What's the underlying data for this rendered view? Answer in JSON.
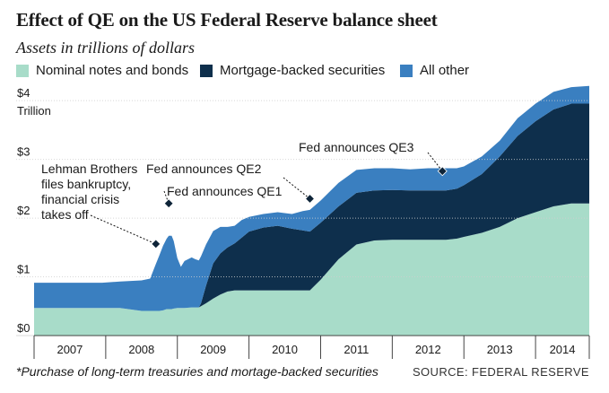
{
  "title": "Effect of QE on the US Federal Reserve balance sheet",
  "subtitle": "Assets in trillions of dollars",
  "footnote": "*Purchase of long-term treasuries and mortage-backed securities",
  "source": "SOURCE: FEDERAL RESERVE",
  "colors": {
    "notes": "#a8dcc9",
    "mbs": "#0e2f4c",
    "other": "#3a7fc0",
    "background": "#ffffff",
    "grid": "#cfcfcf"
  },
  "chart_data": {
    "type": "area",
    "stacked": true,
    "title": "Effect of QE on the US Federal Reserve balance sheet",
    "subtitle": "Assets in trillions of dollars",
    "y_unit_label": "Trillion",
    "ylim": [
      0,
      4.4
    ],
    "y_ticks": [
      {
        "value": 0,
        "label": "$0"
      },
      {
        "value": 1,
        "label": "$1"
      },
      {
        "value": 2,
        "label": "$2"
      },
      {
        "value": 3,
        "label": "$3"
      },
      {
        "value": 4,
        "label": "$4"
      }
    ],
    "xlim": [
      2007.0,
      2014.75
    ],
    "x_ticks": [
      {
        "value": 2007.0,
        "label": "2007"
      },
      {
        "value": 2008.0,
        "label": "2008"
      },
      {
        "value": 2009.0,
        "label": "2009"
      },
      {
        "value": 2010.0,
        "label": "2010"
      },
      {
        "value": 2011.0,
        "label": "2011"
      },
      {
        "value": 2012.0,
        "label": "2012"
      },
      {
        "value": 2013.0,
        "label": "2013"
      },
      {
        "value": 2014.0,
        "label": "2014"
      }
    ],
    "grid": "horizontal",
    "legend_position": "top",
    "x": [
      2007.0,
      2007.5,
      2007.95,
      2008.2,
      2008.5,
      2008.62,
      2008.7,
      2008.75,
      2008.8,
      2008.85,
      2008.88,
      2008.92,
      2008.95,
      2009.0,
      2009.05,
      2009.1,
      2009.2,
      2009.25,
      2009.3,
      2009.33,
      2009.4,
      2009.5,
      2009.6,
      2009.7,
      2009.8,
      2009.9,
      2010.0,
      2010.2,
      2010.4,
      2010.6,
      2010.75,
      2010.85,
      2011.0,
      2011.25,
      2011.5,
      2011.75,
      2012.0,
      2012.25,
      2012.5,
      2012.75,
      2012.9,
      2013.0,
      2013.25,
      2013.5,
      2013.75,
      2014.0,
      2014.25,
      2014.5,
      2014.75
    ],
    "series": [
      {
        "name": "Nominal notes and bonds",
        "color_key": "notes",
        "values": [
          0.47,
          0.47,
          0.47,
          0.47,
          0.42,
          0.42,
          0.42,
          0.42,
          0.43,
          0.45,
          0.45,
          0.45,
          0.46,
          0.47,
          0.47,
          0.47,
          0.48,
          0.48,
          0.48,
          0.5,
          0.55,
          0.63,
          0.7,
          0.75,
          0.77,
          0.77,
          0.77,
          0.77,
          0.77,
          0.77,
          0.77,
          0.77,
          0.95,
          1.3,
          1.55,
          1.62,
          1.63,
          1.63,
          1.63,
          1.63,
          1.65,
          1.68,
          1.75,
          1.85,
          2.0,
          2.1,
          2.2,
          2.25,
          2.25
        ]
      },
      {
        "name": "Mortgage-backed securities",
        "color_key": "mbs",
        "values": [
          0,
          0,
          0,
          0,
          0,
          0,
          0,
          0,
          0,
          0,
          0,
          0,
          0,
          0,
          0,
          0,
          0,
          0,
          0,
          0.05,
          0.3,
          0.6,
          0.7,
          0.75,
          0.8,
          0.9,
          1.0,
          1.07,
          1.1,
          1.05,
          1.02,
          1.0,
          0.97,
          0.9,
          0.88,
          0.85,
          0.85,
          0.84,
          0.84,
          0.84,
          0.85,
          0.88,
          1.0,
          1.2,
          1.4,
          1.55,
          1.65,
          1.7,
          1.7
        ]
      },
      {
        "name": "All other",
        "color_key": "other",
        "values": [
          0.43,
          0.43,
          0.43,
          0.45,
          0.52,
          0.55,
          0.8,
          0.95,
          1.1,
          1.2,
          1.25,
          1.25,
          1.15,
          0.85,
          0.7,
          0.8,
          0.85,
          0.82,
          0.8,
          0.8,
          0.7,
          0.55,
          0.45,
          0.35,
          0.3,
          0.3,
          0.25,
          0.23,
          0.23,
          0.25,
          0.33,
          0.37,
          0.38,
          0.4,
          0.39,
          0.38,
          0.37,
          0.36,
          0.38,
          0.38,
          0.35,
          0.32,
          0.3,
          0.27,
          0.3,
          0.3,
          0.3,
          0.28,
          0.3
        ]
      }
    ],
    "annotations": [
      {
        "label": "Lehman Brothers files bankruptcy, financial crisis takes off",
        "lines": [
          "Lehman Brothers",
          "files bankruptcy,",
          "financial crisis",
          "takes off"
        ],
        "x": 2008.7,
        "y": 1.56
      },
      {
        "label": "Fed announces QE1",
        "lines": [
          "Fed announces QE1"
        ],
        "x": 2008.88,
        "y": 2.25
      },
      {
        "label": "Fed announces QE2",
        "lines": [
          "Fed announces QE2"
        ],
        "x": 2010.85,
        "y": 2.33
      },
      {
        "label": "Fed announces QE3",
        "lines": [
          "Fed announces QE3"
        ],
        "x": 2012.7,
        "y": 2.8
      }
    ]
  }
}
